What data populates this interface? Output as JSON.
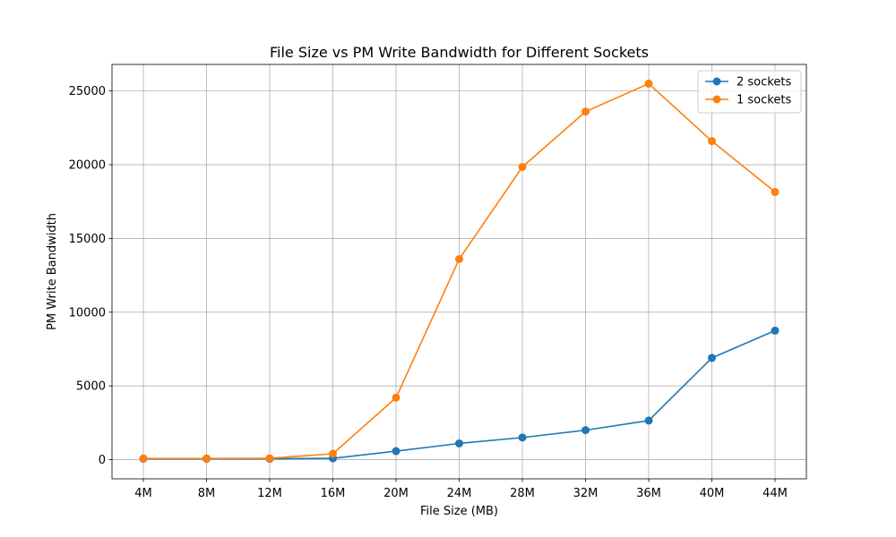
{
  "chart_data": {
    "type": "line",
    "title": "File Size vs PM Write Bandwidth for Different Sockets",
    "xlabel": "File Size (MB)",
    "ylabel": "PM Write Bandwidth",
    "categories": [
      "4M",
      "8M",
      "12M",
      "16M",
      "20M",
      "24M",
      "28M",
      "32M",
      "36M",
      "40M",
      "44M"
    ],
    "yticks": [
      0,
      5000,
      10000,
      15000,
      20000,
      25000
    ],
    "ylim": [
      -1300,
      26800
    ],
    "grid": true,
    "legend_position": "top-right",
    "series": [
      {
        "name": "2 sockets",
        "color": "#1f77b4",
        "values": [
          60,
          60,
          60,
          90,
          580,
          1100,
          1500,
          2000,
          2650,
          6900,
          8750
        ]
      },
      {
        "name": "1 sockets",
        "color": "#ff7f0e",
        "values": [
          80,
          80,
          90,
          400,
          4200,
          13600,
          19850,
          23600,
          25500,
          21600,
          18150
        ]
      }
    ]
  }
}
